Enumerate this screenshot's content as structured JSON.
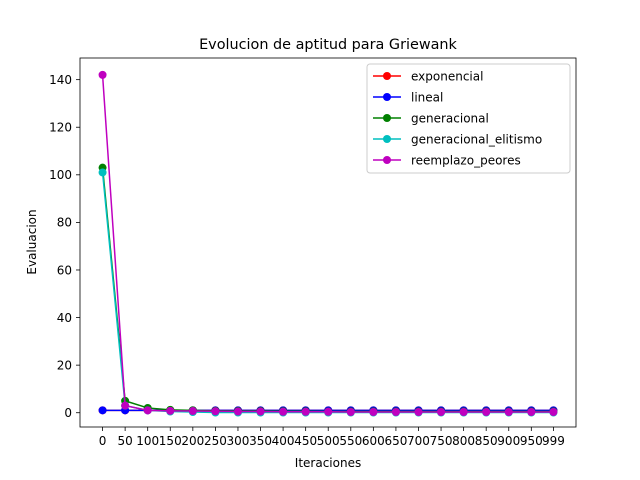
{
  "chart_data": {
    "type": "line",
    "title": "Evolucion de aptitud para Griewank",
    "xlabel": "Iteraciones",
    "ylabel": "Evaluacion",
    "categories": [
      "0",
      "50",
      "100",
      "150",
      "200",
      "250",
      "300",
      "350",
      "400",
      "450",
      "500",
      "550",
      "600",
      "650",
      "700",
      "750",
      "800",
      "850",
      "900",
      "950",
      "999"
    ],
    "x": [
      0,
      50,
      100,
      150,
      200,
      250,
      300,
      350,
      400,
      450,
      500,
      550,
      600,
      650,
      700,
      750,
      800,
      850,
      900,
      950,
      999
    ],
    "ylim": [
      -6.0,
      149.1
    ],
    "yticks": [
      0,
      20,
      40,
      60,
      80,
      100,
      120,
      140
    ],
    "grid": false,
    "legend_position": "top-right",
    "series": [
      {
        "name": "exponencial",
        "color": "#ff0000",
        "values": [
          1.0,
          1.0,
          1.0,
          1.0,
          1.0,
          1.0,
          1.0,
          1.0,
          1.0,
          1.0,
          1.0,
          1.0,
          1.0,
          1.0,
          1.0,
          1.0,
          1.0,
          1.0,
          1.0,
          1.0,
          1.0
        ]
      },
      {
        "name": "lineal",
        "color": "#0000ff",
        "values": [
          1.0,
          1.0,
          1.0,
          1.0,
          1.0,
          1.0,
          1.0,
          1.0,
          1.0,
          1.0,
          1.0,
          1.0,
          1.0,
          1.0,
          1.0,
          1.0,
          1.0,
          1.0,
          1.0,
          1.0,
          1.0
        ]
      },
      {
        "name": "generacional",
        "color": "#008000",
        "values": [
          103.0,
          5.0,
          2.0,
          1.2,
          1.0,
          0.8,
          0.7,
          0.7,
          0.6,
          0.6,
          0.5,
          0.5,
          0.5,
          0.5,
          0.5,
          0.5,
          0.5,
          0.5,
          0.5,
          0.5,
          0.5
        ]
      },
      {
        "name": "generacional_elitismo",
        "color": "#00bfbf",
        "values": [
          101.0,
          3.0,
          1.0,
          0.5,
          0.3,
          0.1,
          0.1,
          0.1,
          0.1,
          0.1,
          0.1,
          0.1,
          0.1,
          0.1,
          0.1,
          0.1,
          0.1,
          0.1,
          0.1,
          0.1,
          0.1
        ]
      },
      {
        "name": "reemplazo_peores",
        "color": "#bf00bf",
        "values": [
          142.0,
          3.0,
          1.0,
          0.8,
          0.7,
          0.6,
          0.5,
          0.5,
          0.4,
          0.4,
          0.4,
          0.3,
          0.3,
          0.3,
          0.3,
          0.3,
          0.3,
          0.3,
          0.3,
          0.3,
          0.3
        ]
      }
    ]
  }
}
